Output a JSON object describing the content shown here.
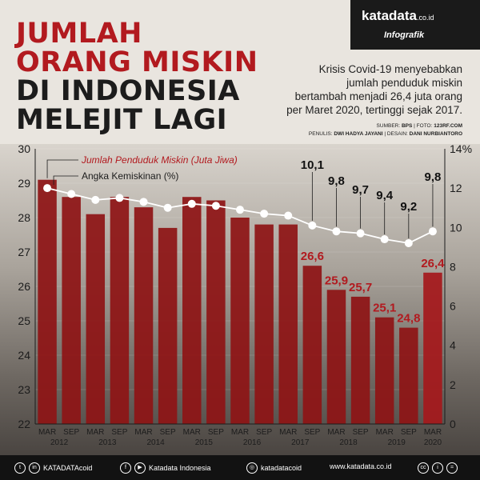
{
  "brand": {
    "name": "katadata",
    "tld": ".co.id",
    "tag": "Infografik"
  },
  "title": {
    "line1": "JUMLAH",
    "line2": "ORANG MISKIN",
    "line3": "DI INDONESIA",
    "line4": "MELEJIT LAGI"
  },
  "description": {
    "line1": "Krisis Covid-19 menyebabkan",
    "line2": "jumlah penduduk miskin",
    "line3": "bertambah menjadi 26,4 juta orang",
    "line4": "per Maret 2020, tertinggi sejak 2017."
  },
  "credits": {
    "sumber_label": "SUMBER:",
    "sumber": "BPS",
    "foto_label": "FOTO:",
    "foto": "123RF.COM",
    "penulis_label": "PENULIS:",
    "penulis": "DWI HADYA JAYANI",
    "desain_label": "DESAIN:",
    "desain": "DANI NURBIANTORO"
  },
  "chart_data": {
    "type": "bar",
    "categories": [
      "MAR 2012",
      "SEP 2012",
      "MAR 2013",
      "SEP 2013",
      "MAR 2014",
      "SEP 2014",
      "MAR 2015",
      "SEP 2015",
      "MAR 2016",
      "SEP 2016",
      "MAR 2017",
      "SEP 2017",
      "MAR 2018",
      "SEP 2018",
      "MAR 2019",
      "SEP 2019",
      "MAR 2020"
    ],
    "x_ticks": [
      "MAR",
      "SEP",
      "MAR",
      "SEP",
      "MAR",
      "SEP",
      "MAR",
      "SEP",
      "MAR",
      "SEP",
      "MAR",
      "SEP",
      "MAR",
      "SEP",
      "MAR",
      "SEP",
      "MAR"
    ],
    "year_labels": [
      "2012",
      "2013",
      "2014",
      "2015",
      "2016",
      "2017",
      "2018",
      "2019",
      "2020"
    ],
    "series": [
      {
        "name": "Jumlah Penduduk Miskin (Juta Jiwa)",
        "type": "bar",
        "axis": "left",
        "values": [
          29.1,
          28.6,
          28.1,
          28.6,
          28.3,
          27.7,
          28.6,
          28.5,
          28.0,
          27.8,
          27.8,
          26.6,
          25.9,
          25.7,
          25.1,
          24.8,
          26.4
        ],
        "labels": [
          "",
          "",
          "",
          "",
          "",
          "",
          "",
          "",
          "",
          "",
          "",
          "26,6",
          "25,9",
          "25,7",
          "25,1",
          "24,8",
          "26,4"
        ]
      },
      {
        "name": "Angka Kemiskinan (%)",
        "type": "line",
        "axis": "right",
        "values": [
          12.0,
          11.7,
          11.4,
          11.5,
          11.3,
          11.0,
          11.2,
          11.1,
          10.9,
          10.7,
          10.6,
          10.1,
          9.8,
          9.7,
          9.4,
          9.2,
          9.8
        ],
        "labels": [
          "",
          "",
          "",
          "",
          "",
          "",
          "",
          "",
          "",
          "",
          "",
          "10,1",
          "9,8",
          "9,7",
          "9,4",
          "9,2",
          "9,8"
        ]
      }
    ],
    "y_left": {
      "min": 22,
      "max": 30,
      "ticks": [
        "22",
        "23",
        "24",
        "25",
        "26",
        "27",
        "28",
        "29",
        "30"
      ]
    },
    "y_right": {
      "min": 0,
      "max": 14,
      "ticks": [
        "0",
        "2",
        "4",
        "6",
        "8",
        "10",
        "12",
        "14%"
      ]
    },
    "colors": {
      "bar": "#8e1416",
      "bar_last": "#a5191c",
      "line": "#ffffff",
      "bar_label": "#b21a1f",
      "line_label": "#111111"
    }
  },
  "footer": {
    "twitter_label": "KATADATAcoid",
    "facebook_label": "Katadata Indonesia",
    "instagram_label": "katadatacoid",
    "website": "www.katadata.co.id"
  }
}
